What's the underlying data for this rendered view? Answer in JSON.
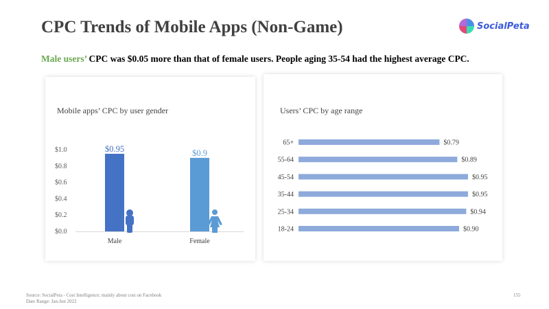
{
  "title": "CPC Trends of Mobile Apps (Non-Game)",
  "logo": {
    "text": "SocialPeta"
  },
  "headline": {
    "highlight": "Male users’",
    "rest": " CPC was $0.05 more than that of female users. People aging 35-54 had the highest average CPC."
  },
  "chart_data": [
    {
      "type": "bar",
      "title": "Mobile apps’ CPC by user gender",
      "categories": [
        "Male",
        "Female"
      ],
      "values": [
        0.95,
        0.9
      ],
      "data_labels": [
        "$0.95",
        "$0.9"
      ],
      "colors": [
        "#4472c4",
        "#5b9bd5"
      ],
      "yticks": [
        "$0.0",
        "$0.2",
        "$0.4",
        "$0.6",
        "$0.8",
        "$1.0"
      ],
      "ylim": [
        0,
        1.0
      ],
      "icons": [
        "male-icon",
        "female-icon"
      ]
    },
    {
      "type": "bar",
      "orientation": "horizontal",
      "title": "Users’ CPC by age range",
      "categories": [
        "65+",
        "55-64",
        "45-54",
        "35-44",
        "25-34",
        "18-24"
      ],
      "values": [
        0.79,
        0.89,
        0.95,
        0.95,
        0.94,
        0.9
      ],
      "data_labels": [
        "$0.79",
        "$0.89",
        "$0.95",
        "$0.95",
        "$0.94",
        "$0.90"
      ],
      "color": "#8eaadb"
    }
  ],
  "footer": {
    "source": "Source: SocialPeta - Cost Intelligence; mainly about cost on Facebook",
    "date_range": "Date Range: Jan-Jun 2022",
    "page": "155"
  }
}
